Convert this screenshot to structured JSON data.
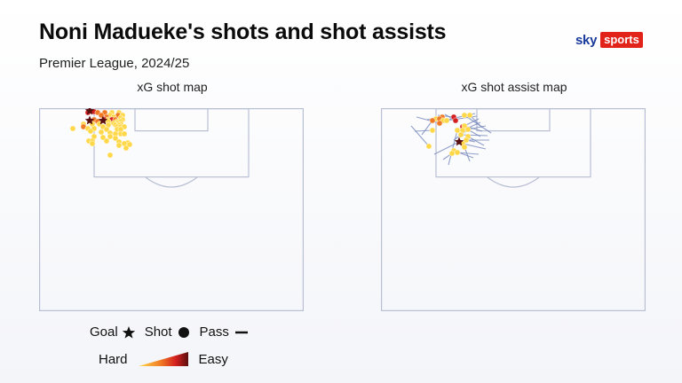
{
  "header": {
    "title": "Noni Madueke's shots and shot assists",
    "subtitle": "Premier League, 2024/25",
    "brand_sky": "sky",
    "brand_sports": "sports"
  },
  "legend": {
    "goal_label": "Goal",
    "shot_label": "Shot",
    "pass_label": "Pass",
    "hard_label": "Hard",
    "easy_label": "Easy"
  },
  "colors": {
    "pitch_line": "#b9bfd4",
    "low_xg": "#ffd84a",
    "mid_xg": "#f07a24",
    "high_xg": "#d31f1f",
    "goal": "#5a0f0f",
    "pass_line": "#7788bb"
  },
  "chart_data": [
    {
      "type": "scatter",
      "title": "xG shot map",
      "goals": [
        {
          "x": 57,
          "y": 3
        },
        {
          "x": 57,
          "y": 14
        },
        {
          "x": 72,
          "y": 14
        }
      ],
      "shots": [
        {
          "x": 55,
          "y": 5,
          "level": 4
        },
        {
          "x": 62,
          "y": 4,
          "level": 4
        },
        {
          "x": 66,
          "y": 5,
          "level": 3
        },
        {
          "x": 74,
          "y": 5,
          "level": 2
        },
        {
          "x": 82,
          "y": 5,
          "level": 1
        },
        {
          "x": 90,
          "y": 5,
          "level": 1
        },
        {
          "x": 70,
          "y": 8,
          "level": 3
        },
        {
          "x": 80,
          "y": 8,
          "level": 1
        },
        {
          "x": 89,
          "y": 8,
          "level": 2
        },
        {
          "x": 94,
          "y": 8,
          "level": 1
        },
        {
          "x": 76,
          "y": 10,
          "level": 2
        },
        {
          "x": 84,
          "y": 10,
          "level": 1
        },
        {
          "x": 92,
          "y": 11,
          "level": 1
        },
        {
          "x": 62,
          "y": 13,
          "level": 2
        },
        {
          "x": 74,
          "y": 13,
          "level": 4
        },
        {
          "x": 78,
          "y": 13,
          "level": 1
        },
        {
          "x": 82,
          "y": 13,
          "level": 4
        },
        {
          "x": 86,
          "y": 13,
          "level": 2
        },
        {
          "x": 94,
          "y": 13,
          "level": 1
        },
        {
          "x": 66,
          "y": 15,
          "level": 2
        },
        {
          "x": 78,
          "y": 15,
          "level": 1
        },
        {
          "x": 88,
          "y": 15,
          "level": 1
        },
        {
          "x": 92,
          "y": 15,
          "level": 1
        },
        {
          "x": 88,
          "y": 17,
          "level": 1
        },
        {
          "x": 84,
          "y": 17,
          "level": 1
        },
        {
          "x": 92,
          "y": 18,
          "level": 1
        },
        {
          "x": 50,
          "y": 18,
          "level": 1
        },
        {
          "x": 60,
          "y": 18,
          "level": 1
        },
        {
          "x": 68,
          "y": 18,
          "level": 1
        },
        {
          "x": 78,
          "y": 19,
          "level": 1
        },
        {
          "x": 86,
          "y": 19,
          "level": 1
        },
        {
          "x": 90,
          "y": 19,
          "level": 1
        },
        {
          "x": 50,
          "y": 21,
          "level": 2
        },
        {
          "x": 72,
          "y": 21,
          "level": 1
        },
        {
          "x": 88,
          "y": 21,
          "level": 1
        },
        {
          "x": 92,
          "y": 21,
          "level": 1
        },
        {
          "x": 96,
          "y": 21,
          "level": 1
        },
        {
          "x": 38,
          "y": 23,
          "level": 1
        },
        {
          "x": 55,
          "y": 23,
          "level": 1
        },
        {
          "x": 62,
          "y": 23,
          "level": 1
        },
        {
          "x": 76,
          "y": 24,
          "level": 1
        },
        {
          "x": 88,
          "y": 24,
          "level": 1
        },
        {
          "x": 92,
          "y": 24,
          "level": 1
        },
        {
          "x": 58,
          "y": 26,
          "level": 1
        },
        {
          "x": 70,
          "y": 27,
          "level": 1
        },
        {
          "x": 80,
          "y": 28,
          "level": 1
        },
        {
          "x": 86,
          "y": 29,
          "level": 1
        },
        {
          "x": 92,
          "y": 29,
          "level": 1
        },
        {
          "x": 96,
          "y": 29,
          "level": 1
        },
        {
          "x": 62,
          "y": 32,
          "level": 1
        },
        {
          "x": 80,
          "y": 32,
          "level": 1
        },
        {
          "x": 72,
          "y": 33,
          "level": 1
        },
        {
          "x": 86,
          "y": 34,
          "level": 1
        },
        {
          "x": 56,
          "y": 37,
          "level": 1
        },
        {
          "x": 60,
          "y": 37,
          "level": 1
        },
        {
          "x": 76,
          "y": 37,
          "level": 1
        },
        {
          "x": 90,
          "y": 38,
          "level": 1
        },
        {
          "x": 100,
          "y": 39,
          "level": 1
        },
        {
          "x": 96,
          "y": 40,
          "level": 1
        },
        {
          "x": 102,
          "y": 41,
          "level": 1
        },
        {
          "x": 90,
          "y": 42,
          "level": 1
        },
        {
          "x": 98,
          "y": 45,
          "level": 1
        },
        {
          "x": 60,
          "y": 40,
          "level": 1
        },
        {
          "x": 80,
          "y": 53,
          "level": 1
        }
      ],
      "legend": [
        "Goal",
        "Shot",
        "Pass"
      ]
    },
    {
      "type": "scatter",
      "title": "xG shot assist map",
      "goals": [
        {
          "x": 88,
          "y": 38
        }
      ],
      "shots": [
        {
          "x": 69,
          "y": 10,
          "level": 3
        },
        {
          "x": 82,
          "y": 10,
          "level": 4
        },
        {
          "x": 62,
          "y": 12,
          "level": 1
        },
        {
          "x": 66,
          "y": 12,
          "level": 3
        },
        {
          "x": 70,
          "y": 14,
          "level": 1
        },
        {
          "x": 74,
          "y": 14,
          "level": 1
        },
        {
          "x": 84,
          "y": 14,
          "level": 4
        },
        {
          "x": 66,
          "y": 17,
          "level": 3
        },
        {
          "x": 58,
          "y": 14,
          "level": 2
        },
        {
          "x": 94,
          "y": 8,
          "level": 1
        },
        {
          "x": 100,
          "y": 8,
          "level": 1
        },
        {
          "x": 92,
          "y": 21,
          "level": 4
        },
        {
          "x": 94,
          "y": 20,
          "level": 1
        },
        {
          "x": 86,
          "y": 25,
          "level": 1
        },
        {
          "x": 92,
          "y": 25,
          "level": 1
        },
        {
          "x": 98,
          "y": 24,
          "level": 1
        },
        {
          "x": 58,
          "y": 25,
          "level": 1
        },
        {
          "x": 90,
          "y": 30,
          "level": 1
        },
        {
          "x": 98,
          "y": 32,
          "level": 1
        },
        {
          "x": 96,
          "y": 36,
          "level": 1
        },
        {
          "x": 92,
          "y": 40,
          "level": 1
        },
        {
          "x": 54,
          "y": 43,
          "level": 1
        },
        {
          "x": 82,
          "y": 48,
          "level": 1
        },
        {
          "x": 86,
          "y": 50,
          "level": 1
        },
        {
          "x": 80,
          "y": 51,
          "level": 1
        },
        {
          "x": 94,
          "y": 44,
          "level": 1
        }
      ],
      "passes": [
        {
          "x1": 40,
          "y1": 10,
          "x2": 66,
          "y2": 17
        },
        {
          "x1": 52,
          "y1": 13,
          "x2": 69,
          "y2": 10
        },
        {
          "x1": 64,
          "y1": 8,
          "x2": 82,
          "y2": 10
        },
        {
          "x1": 72,
          "y1": 7,
          "x2": 84,
          "y2": 14
        },
        {
          "x1": 108,
          "y1": 9,
          "x2": 74,
          "y2": 14
        },
        {
          "x1": 110,
          "y1": 12,
          "x2": 92,
          "y2": 21
        },
        {
          "x1": 106,
          "y1": 6,
          "x2": 70,
          "y2": 14
        },
        {
          "x1": 112,
          "y1": 16,
          "x2": 92,
          "y2": 25
        },
        {
          "x1": 118,
          "y1": 20,
          "x2": 98,
          "y2": 24
        },
        {
          "x1": 114,
          "y1": 26,
          "x2": 94,
          "y2": 20
        },
        {
          "x1": 120,
          "y1": 31,
          "x2": 90,
          "y2": 30
        },
        {
          "x1": 122,
          "y1": 36,
          "x2": 96,
          "y2": 36
        },
        {
          "x1": 116,
          "y1": 42,
          "x2": 98,
          "y2": 32
        },
        {
          "x1": 118,
          "y1": 46,
          "x2": 92,
          "y2": 40
        },
        {
          "x1": 110,
          "y1": 52,
          "x2": 86,
          "y2": 50
        },
        {
          "x1": 100,
          "y1": 60,
          "x2": 94,
          "y2": 44
        },
        {
          "x1": 104,
          "y1": 56,
          "x2": 82,
          "y2": 48
        },
        {
          "x1": 76,
          "y1": 64,
          "x2": 86,
          "y2": 25
        },
        {
          "x1": 70,
          "y1": 58,
          "x2": 80,
          "y2": 51
        },
        {
          "x1": 60,
          "y1": 52,
          "x2": 88,
          "y2": 38
        },
        {
          "x1": 38,
          "y1": 26,
          "x2": 58,
          "y2": 25
        },
        {
          "x1": 34,
          "y1": 20,
          "x2": 54,
          "y2": 43
        },
        {
          "x1": 46,
          "y1": 30,
          "x2": 58,
          "y2": 14
        },
        {
          "x1": 112,
          "y1": 32,
          "x2": 92,
          "y2": 21
        },
        {
          "x1": 106,
          "y1": 38,
          "x2": 96,
          "y2": 36
        },
        {
          "x1": 114,
          "y1": 22,
          "x2": 100,
          "y2": 8
        },
        {
          "x1": 124,
          "y1": 28,
          "x2": 94,
          "y2": 8
        },
        {
          "x1": 82,
          "y1": 36,
          "x2": 98,
          "y2": 24
        }
      ]
    }
  ]
}
